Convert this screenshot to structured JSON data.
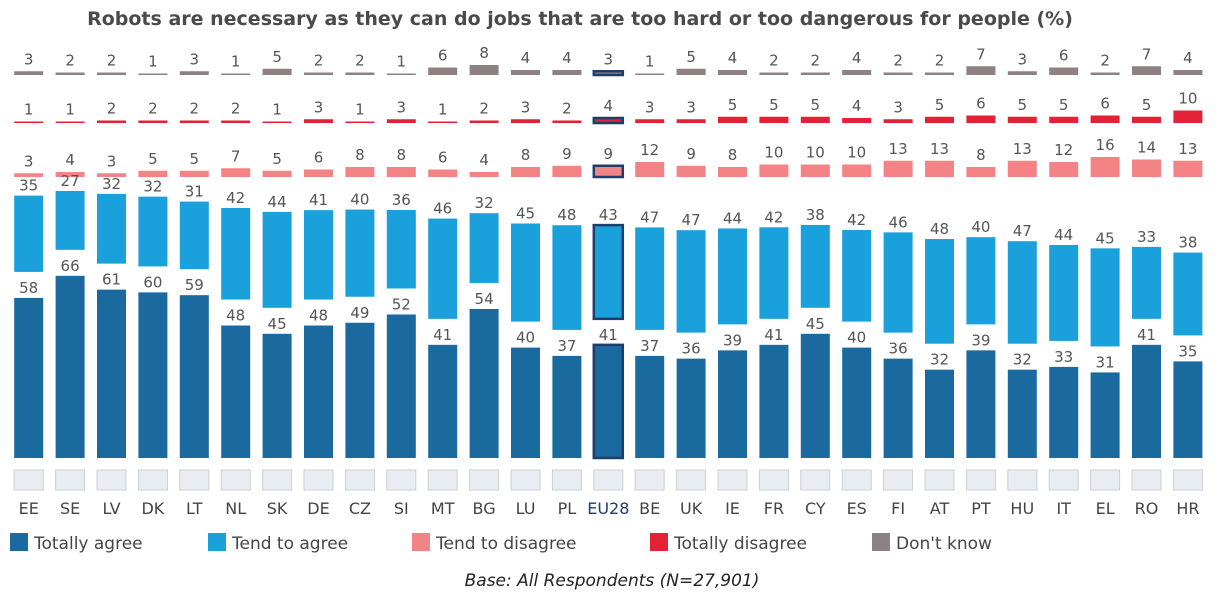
{
  "chart_data": {
    "type": "bar",
    "title": "Robots are necessary as they can do jobs that are too hard or too dangerous for people (%)",
    "footnote": "Base: All Respondents (N=27,901)",
    "highlight": "EU28",
    "categories": [
      "EE",
      "SE",
      "LV",
      "DK",
      "LT",
      "NL",
      "SK",
      "DE",
      "CZ",
      "SI",
      "MT",
      "BG",
      "LU",
      "PL",
      "EU28",
      "BE",
      "UK",
      "IE",
      "FR",
      "CY",
      "ES",
      "FI",
      "AT",
      "PT",
      "HU",
      "IT",
      "EL",
      "RO",
      "HR"
    ],
    "series": [
      {
        "name": "Totally agree",
        "color": "#1a6aa0",
        "values": [
          58,
          66,
          61,
          60,
          59,
          48,
          45,
          48,
          49,
          52,
          41,
          54,
          40,
          37,
          41,
          37,
          36,
          39,
          41,
          45,
          40,
          36,
          32,
          39,
          32,
          33,
          31,
          41,
          35
        ]
      },
      {
        "name": "Tend to agree",
        "color": "#1aa0da",
        "values": [
          35,
          27,
          32,
          32,
          31,
          42,
          44,
          41,
          40,
          36,
          46,
          32,
          45,
          48,
          43,
          47,
          47,
          44,
          42,
          38,
          42,
          46,
          48,
          40,
          47,
          44,
          45,
          33,
          38
        ]
      },
      {
        "name": "Tend to disagree",
        "color": "#f48386",
        "values": [
          3,
          4,
          3,
          5,
          5,
          7,
          5,
          6,
          8,
          8,
          6,
          4,
          8,
          9,
          9,
          12,
          9,
          8,
          10,
          10,
          10,
          13,
          13,
          8,
          13,
          12,
          16,
          14,
          13
        ]
      },
      {
        "name": "Totally disagree",
        "color": "#e32236",
        "values": [
          1,
          1,
          2,
          2,
          2,
          2,
          1,
          3,
          1,
          3,
          1,
          2,
          3,
          2,
          4,
          3,
          3,
          5,
          5,
          5,
          4,
          3,
          5,
          6,
          5,
          5,
          6,
          5,
          10
        ]
      },
      {
        "name": "Don't know",
        "color": "#8c8284",
        "values": [
          3,
          2,
          2,
          1,
          3,
          1,
          5,
          2,
          2,
          1,
          6,
          8,
          4,
          4,
          3,
          1,
          5,
          4,
          2,
          2,
          4,
          2,
          2,
          7,
          3,
          6,
          2,
          7,
          4
        ]
      }
    ]
  }
}
